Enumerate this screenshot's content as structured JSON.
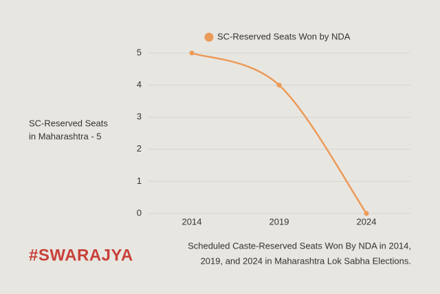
{
  "chart_data": {
    "type": "line",
    "categories": [
      "2014",
      "2019",
      "2024"
    ],
    "series": [
      {
        "name": "SC-Reserved Seats Won by NDA",
        "color": "#ec9a58",
        "values": [
          5,
          4,
          0
        ]
      }
    ],
    "ylim": [
      0,
      5
    ],
    "yticks": [
      0,
      1,
      2,
      3,
      4,
      5
    ],
    "grid": true,
    "legend": "top",
    "annotation": [
      "SC-Reserved Seats",
      "in Maharashtra - 5"
    ],
    "caption": [
      "Scheduled Caste-Reserved Seats Won By NDA in 2014,",
      "2019, and 2024 in Maharashtra Lok Sabha Elections."
    ],
    "brand": "#SWARAJYA"
  }
}
